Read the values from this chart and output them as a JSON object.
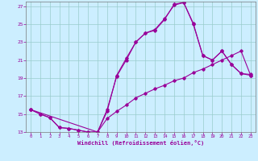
{
  "xlabel": "Windchill (Refroidissement éolien,°C)",
  "xlim": [
    -0.5,
    23.5
  ],
  "ylim": [
    13,
    27.5
  ],
  "yticks": [
    13,
    15,
    17,
    19,
    21,
    23,
    25,
    27
  ],
  "xticks": [
    0,
    1,
    2,
    3,
    4,
    5,
    6,
    7,
    8,
    9,
    10,
    11,
    12,
    13,
    14,
    15,
    16,
    17,
    18,
    19,
    20,
    21,
    22,
    23
  ],
  "line_color": "#990099",
  "bg_color": "#cceeff",
  "grid_color": "#99cccc",
  "curve1_x": [
    0,
    1,
    2,
    3,
    4,
    5,
    6,
    7,
    8,
    9,
    10,
    11,
    12,
    13,
    14,
    15,
    16,
    17,
    18,
    19,
    20,
    21,
    22,
    23
  ],
  "curve1_y": [
    15.5,
    15.0,
    14.6,
    13.5,
    13.4,
    13.2,
    13.0,
    13.0,
    15.5,
    19.2,
    21.0,
    23.0,
    24.0,
    24.3,
    25.5,
    27.2,
    27.4,
    25.0,
    21.5,
    21.0,
    22.0,
    20.5,
    19.5,
    19.4
  ],
  "curve2_x": [
    0,
    7,
    8,
    9,
    10,
    11,
    12,
    13,
    14,
    15,
    16,
    17,
    18,
    19,
    20,
    21,
    22,
    23
  ],
  "curve2_y": [
    15.5,
    13.0,
    15.3,
    19.3,
    21.2,
    23.0,
    24.0,
    24.4,
    25.6,
    27.1,
    27.4,
    25.1,
    21.5,
    21.0,
    22.0,
    20.5,
    19.5,
    19.3
  ],
  "curve3_x": [
    0,
    1,
    2,
    3,
    4,
    5,
    6,
    7,
    8,
    9,
    10,
    11,
    12,
    13,
    14,
    15,
    16,
    17,
    18,
    19,
    20,
    21,
    22,
    23
  ],
  "curve3_y": [
    15.5,
    15.0,
    14.6,
    13.5,
    13.4,
    13.2,
    13.0,
    13.0,
    14.5,
    15.3,
    16.0,
    16.8,
    17.3,
    17.8,
    18.2,
    18.7,
    19.0,
    19.6,
    20.0,
    20.5,
    21.0,
    21.5,
    22.0,
    19.3
  ]
}
